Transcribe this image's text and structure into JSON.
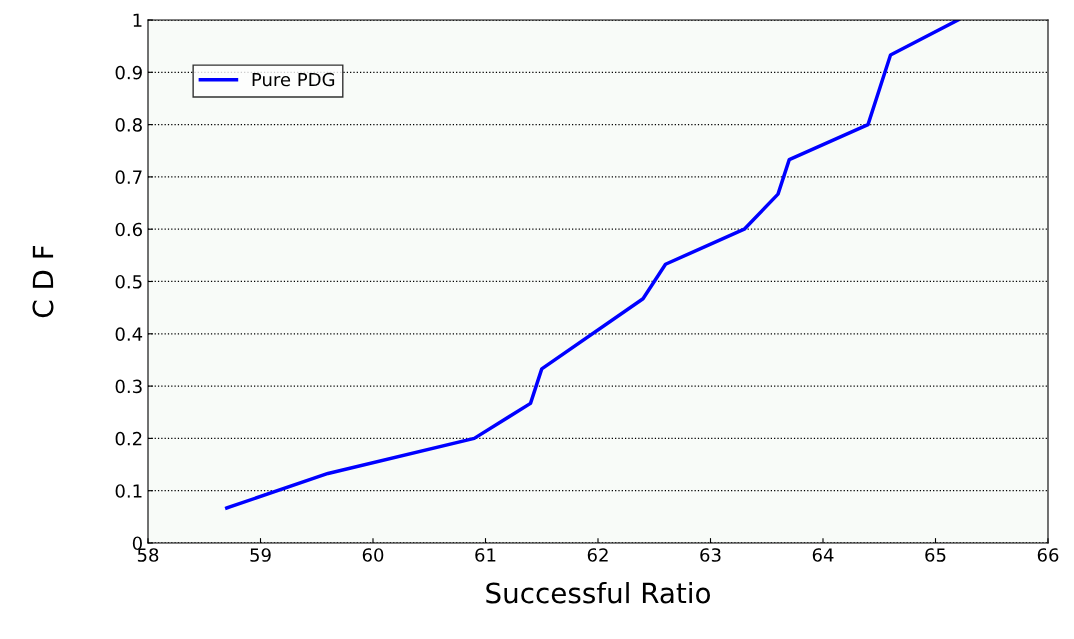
{
  "chart_data": {
    "type": "line",
    "xlabel": "Successful Ratio",
    "ylabel": "C D F",
    "x": [
      58.7,
      59.6,
      60.9,
      61.4,
      61.5,
      62.4,
      62.6,
      63.3,
      63.6,
      63.7,
      64.4,
      64.6,
      65.2
    ],
    "series": [
      {
        "name": "Pure PDG",
        "color": "#0000ff",
        "values": [
          0.067,
          0.133,
          0.2,
          0.267,
          0.333,
          0.467,
          0.533,
          0.6,
          0.667,
          0.733,
          0.8,
          0.933,
          1.0
        ]
      }
    ],
    "xlim": [
      58,
      66
    ],
    "xticks": [
      58,
      59,
      60,
      61,
      62,
      63,
      64,
      65,
      66
    ],
    "ylim": [
      0,
      1
    ],
    "yticks": [
      0,
      0.1,
      0.2,
      0.3,
      0.4,
      0.5,
      0.6,
      0.7,
      0.8,
      0.9,
      1
    ],
    "grid": "y",
    "legend": "top left",
    "marker": "none",
    "line_style": "solid"
  }
}
